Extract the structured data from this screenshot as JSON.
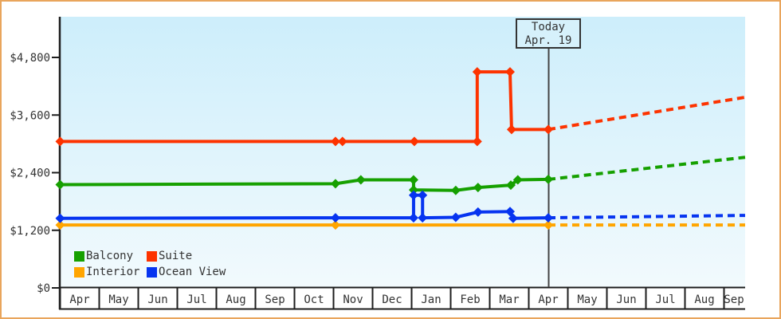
{
  "colors": {
    "frame_border": "#e9a55c",
    "plot_bg_top": "#cdeefb",
    "plot_bg_bottom": "#f2fafd",
    "axis": "#1e1e1e",
    "text": "#333333",
    "today_line": "#444444",
    "today_box_bg": "#d6f1fb",
    "today_box_border": "#333333"
  },
  "today_flag": {
    "line1": "Today",
    "line2": "Apr. 19"
  },
  "legend": {
    "items": [
      {
        "label": "Balcony",
        "color": "#16a000"
      },
      {
        "label": "Suite",
        "color": "#fd3300"
      },
      {
        "label": "Interior",
        "color": "#ffa500"
      },
      {
        "label": "Ocean View",
        "color": "#0634f0"
      }
    ]
  },
  "chart_data": {
    "type": "line",
    "title": "",
    "x_labels": [
      "Apr",
      "May",
      "Jun",
      "Jul",
      "Aug",
      "Sep",
      "Oct",
      "Nov",
      "Dec",
      "Jan",
      "Feb",
      "Mar",
      "Apr",
      "May",
      "Jun",
      "Jul",
      "Aug",
      "Sep"
    ],
    "today_month_index": 12,
    "y_range": [
      0,
      4800
    ],
    "y_ticks": [
      {
        "value": 0,
        "label": "$0"
      },
      {
        "value": 1200,
        "label": "$1,200"
      },
      {
        "value": 2400,
        "label": "$2,400"
      },
      {
        "value": 3600,
        "label": "$3,600"
      },
      {
        "value": 4800,
        "label": "$4,800"
      }
    ],
    "grid": false,
    "legend_position": "bottom-left",
    "series": [
      {
        "name": "Balcony",
        "color": "#16a000",
        "points": [
          [
            -0.5,
            2150
          ],
          [
            6.55,
            2170
          ],
          [
            7.2,
            2250
          ],
          [
            8.55,
            2250
          ],
          [
            8.55,
            2040
          ],
          [
            9.63,
            2030
          ],
          [
            10.2,
            2090
          ],
          [
            11.04,
            2140
          ],
          [
            11.22,
            2250
          ],
          [
            12,
            2260
          ]
        ],
        "markers": [
          [
            -0.5,
            2150
          ],
          [
            6.55,
            2170
          ],
          [
            7.2,
            2250
          ],
          [
            8.55,
            2250
          ],
          [
            8.55,
            2040
          ],
          [
            9.63,
            2030
          ],
          [
            10.2,
            2090
          ],
          [
            11.04,
            2140
          ],
          [
            11.22,
            2250
          ],
          [
            12,
            2260
          ]
        ],
        "forecast": [
          [
            12,
            2260
          ],
          [
            17.04,
            2720
          ]
        ]
      },
      {
        "name": "Suite",
        "color": "#fd3300",
        "points": [
          [
            -0.5,
            3050
          ],
          [
            6.55,
            3050
          ],
          [
            6.73,
            3050
          ],
          [
            8.57,
            3050
          ],
          [
            10.18,
            3050
          ],
          [
            10.18,
            4500
          ],
          [
            11.02,
            4500
          ],
          [
            11.06,
            3300
          ],
          [
            12,
            3300
          ]
        ],
        "markers": [
          [
            -0.5,
            3050
          ],
          [
            6.55,
            3050
          ],
          [
            6.73,
            3050
          ],
          [
            8.57,
            3050
          ],
          [
            10.18,
            3050
          ],
          [
            10.18,
            4500
          ],
          [
            11.02,
            4500
          ],
          [
            11.06,
            3300
          ],
          [
            12,
            3300
          ]
        ],
        "forecast": [
          [
            12,
            3300
          ],
          [
            17.04,
            3970
          ]
        ]
      },
      {
        "name": "Interior",
        "color": "#ffa500",
        "points": [
          [
            -0.5,
            1310
          ],
          [
            6.55,
            1310
          ],
          [
            12,
            1310
          ]
        ],
        "markers": [
          [
            -0.5,
            1310
          ],
          [
            6.55,
            1310
          ],
          [
            12,
            1310
          ]
        ],
        "forecast": [
          [
            12,
            1310
          ],
          [
            17.04,
            1310
          ]
        ]
      },
      {
        "name": "Ocean View",
        "color": "#0634f0",
        "points": [
          [
            -0.5,
            1450
          ],
          [
            6.55,
            1460
          ],
          [
            8.55,
            1460
          ],
          [
            8.55,
            1930
          ],
          [
            8.78,
            1930
          ],
          [
            8.78,
            1460
          ],
          [
            9.63,
            1470
          ],
          [
            10.2,
            1580
          ],
          [
            11.02,
            1590
          ],
          [
            11.1,
            1450
          ],
          [
            12,
            1460
          ]
        ],
        "markers": [
          [
            -0.5,
            1450
          ],
          [
            6.55,
            1460
          ],
          [
            8.55,
            1460
          ],
          [
            8.55,
            1930
          ],
          [
            8.78,
            1930
          ],
          [
            8.78,
            1460
          ],
          [
            9.63,
            1470
          ],
          [
            10.2,
            1580
          ],
          [
            11.02,
            1590
          ],
          [
            11.1,
            1450
          ],
          [
            12,
            1460
          ]
        ],
        "forecast": [
          [
            12,
            1460
          ],
          [
            17.04,
            1510
          ]
        ]
      }
    ]
  }
}
